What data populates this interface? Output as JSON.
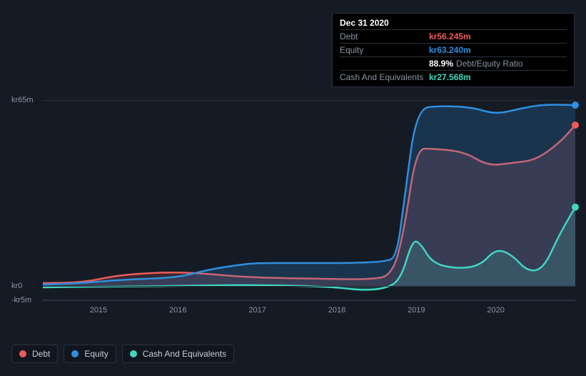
{
  "tooltip": {
    "date": "Dec 31 2020",
    "rows": [
      {
        "label": "Debt",
        "value": "kr56.245m",
        "color": "#eb5b5b"
      },
      {
        "label": "Equity",
        "value": "kr63.240m",
        "color": "#2f8fe0"
      },
      {
        "label": "",
        "pct": "88.9%",
        "pct_label": "Debt/Equity Ratio"
      },
      {
        "label": "Cash And Equivalents",
        "value": "kr27.568m",
        "color": "#3fd6c0"
      }
    ]
  },
  "chart": {
    "type": "area",
    "background_color": "#151b24",
    "grid_color": "#2a323e",
    "ylim": [
      -5,
      65
    ],
    "y_ticks": [
      {
        "v": 65,
        "label": "kr65m"
      },
      {
        "v": 0,
        "label": "kr0"
      },
      {
        "v": -5,
        "label": "-kr5m"
      }
    ],
    "xlim": [
      2014.3,
      2021.0
    ],
    "x_ticks": [
      2015,
      2016,
      2017,
      2018,
      2019,
      2020
    ],
    "series": [
      {
        "name": "Debt",
        "color": "#eb5b5b",
        "fill_opacity": 0.18,
        "line_width": 2.5,
        "points": [
          [
            2014.3,
            1
          ],
          [
            2014.8,
            1.2
          ],
          [
            2015.2,
            3.5
          ],
          [
            2015.6,
            4.5
          ],
          [
            2016.0,
            4.8
          ],
          [
            2016.4,
            4.2
          ],
          [
            2016.8,
            3.2
          ],
          [
            2017.2,
            2.8
          ],
          [
            2017.6,
            2.6
          ],
          [
            2018.0,
            2.4
          ],
          [
            2018.4,
            2.3
          ],
          [
            2018.7,
            3.5
          ],
          [
            2018.85,
            20
          ],
          [
            2019.0,
            48
          ],
          [
            2019.2,
            48
          ],
          [
            2019.6,
            47
          ],
          [
            2019.9,
            42
          ],
          [
            2020.2,
            43
          ],
          [
            2020.5,
            44
          ],
          [
            2020.8,
            50
          ],
          [
            2021.0,
            56.245
          ]
        ]
      },
      {
        "name": "Equity",
        "color": "#2f8fe0",
        "fill_opacity": 0.22,
        "line_width": 2.5,
        "points": [
          [
            2014.3,
            0.5
          ],
          [
            2014.8,
            1
          ],
          [
            2015.2,
            2
          ],
          [
            2015.6,
            2.5
          ],
          [
            2016.0,
            3
          ],
          [
            2016.4,
            5.8
          ],
          [
            2016.8,
            7.5
          ],
          [
            2017.0,
            8
          ],
          [
            2017.4,
            8
          ],
          [
            2017.8,
            8
          ],
          [
            2018.2,
            8
          ],
          [
            2018.6,
            8.5
          ],
          [
            2018.75,
            10
          ],
          [
            2018.85,
            30
          ],
          [
            2019.0,
            62
          ],
          [
            2019.3,
            63
          ],
          [
            2019.7,
            62.5
          ],
          [
            2020.0,
            60
          ],
          [
            2020.3,
            62
          ],
          [
            2020.6,
            63.5
          ],
          [
            2021.0,
            63.24
          ]
        ]
      },
      {
        "name": "Cash And Equivalents",
        "color": "#3fd6c0",
        "fill_opacity": 0.16,
        "line_width": 2.5,
        "points": [
          [
            2014.3,
            -0.5
          ],
          [
            2014.8,
            -0.3
          ],
          [
            2015.2,
            -0.2
          ],
          [
            2015.6,
            -0.1
          ],
          [
            2016.0,
            0
          ],
          [
            2016.4,
            0.2
          ],
          [
            2016.8,
            0.3
          ],
          [
            2017.2,
            0.2
          ],
          [
            2017.6,
            0
          ],
          [
            2018.0,
            -0.5
          ],
          [
            2018.3,
            -1.5
          ],
          [
            2018.6,
            -1
          ],
          [
            2018.8,
            2
          ],
          [
            2018.95,
            16
          ],
          [
            2019.05,
            15
          ],
          [
            2019.2,
            8
          ],
          [
            2019.5,
            6
          ],
          [
            2019.8,
            7
          ],
          [
            2020.0,
            13
          ],
          [
            2020.2,
            11
          ],
          [
            2020.4,
            5
          ],
          [
            2020.6,
            6
          ],
          [
            2020.8,
            18
          ],
          [
            2021.0,
            27.568
          ]
        ]
      }
    ],
    "end_markers": [
      {
        "x": 2021.0,
        "y": 56.245,
        "color": "#eb5b5b"
      },
      {
        "x": 2021.0,
        "y": 63.24,
        "color": "#2f8fe0"
      },
      {
        "x": 2021.0,
        "y": 27.568,
        "color": "#3fd6c0"
      }
    ],
    "label_fontsize": 11,
    "label_color": "#8a94a3"
  },
  "legend": [
    {
      "label": "Debt",
      "color": "#eb5b5b"
    },
    {
      "label": "Equity",
      "color": "#2f8fe0"
    },
    {
      "label": "Cash And Equivalents",
      "color": "#3fd6c0"
    }
  ]
}
